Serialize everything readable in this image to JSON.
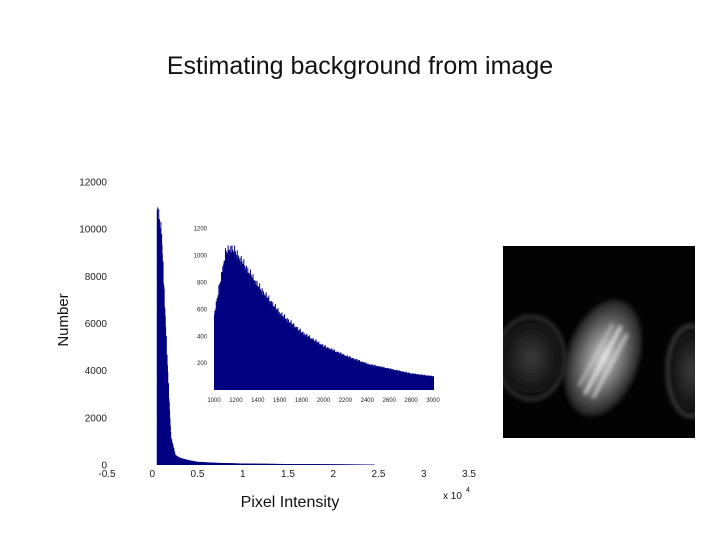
{
  "title": "Estimating background from image",
  "chart_data": [
    {
      "type": "bar",
      "name": "main-histogram",
      "xlabel": "Pixel Intensity",
      "ylabel": "Number",
      "x_multiplier": "x 10",
      "x_multiplier_exp": "4",
      "xlim": [
        -0.5,
        3.5
      ],
      "ylim": [
        0,
        12000
      ],
      "xticks": [
        "-0.5",
        "0",
        "0.5",
        "1",
        "1.5",
        "2",
        "2.5",
        "3",
        "3.5"
      ],
      "yticks": [
        "0",
        "2000",
        "4000",
        "6000",
        "8000",
        "10000",
        "12000"
      ],
      "color": "#000080",
      "x": [
        0.05,
        0.1,
        0.15,
        0.2,
        0.25,
        0.3,
        0.4,
        0.5,
        0.7,
        1.0,
        1.5,
        2.0,
        2.4
      ],
      "values": [
        10800,
        9500,
        5200,
        1200,
        420,
        300,
        200,
        130,
        90,
        60,
        40,
        30,
        20
      ]
    },
    {
      "type": "bar",
      "name": "inset-histogram",
      "xlim": [
        1000,
        3000
      ],
      "ylim": [
        0,
        1300
      ],
      "xticks": [
        "1000",
        "1200",
        "1400",
        "1600",
        "1800",
        "2000",
        "2200",
        "2400",
        "2600",
        "2800",
        "3000"
      ],
      "yticks": [
        "200",
        "400",
        "600",
        "800",
        "1000",
        "1200"
      ],
      "color": "#000080",
      "x": [
        1000,
        1100,
        1150,
        1200,
        1300,
        1400,
        1500,
        1600,
        1800,
        2000,
        2200,
        2400,
        2600,
        2800,
        3000
      ],
      "values": [
        560,
        1000,
        1040,
        1000,
        880,
        760,
        660,
        560,
        420,
        320,
        250,
        190,
        155,
        120,
        100
      ]
    }
  ],
  "colors": {
    "bars": "#000080",
    "background": "#ffffff"
  },
  "image": {
    "content": "fluorescence micrograph of cells"
  }
}
